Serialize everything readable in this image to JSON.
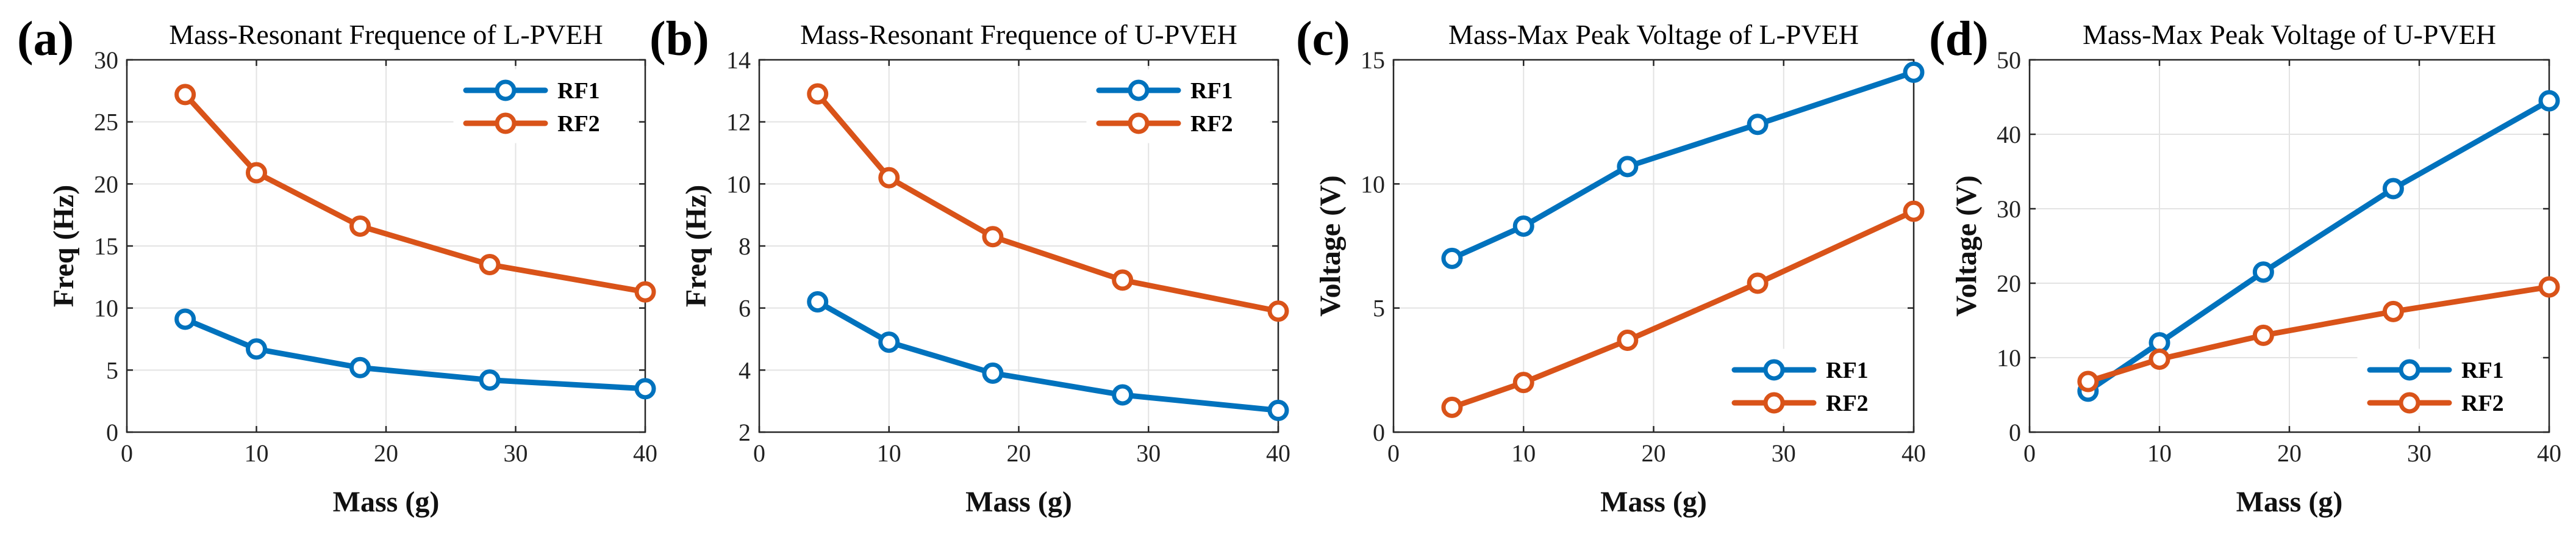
{
  "colors": {
    "rf1": "#0072BD",
    "rf2": "#D95319"
  },
  "chart_data": [
    {
      "type": "line",
      "panel_label": "(a)",
      "title": "Mass-Resonant Frequence of L-PVEH",
      "xlabel": "Mass (g)",
      "ylabel": "Freq (Hz)",
      "xlim": [
        0,
        40
      ],
      "ylim": [
        0,
        30
      ],
      "xticks": [
        0,
        10,
        20,
        30,
        40
      ],
      "yticks": [
        0,
        5,
        10,
        15,
        20,
        25,
        30
      ],
      "grid": true,
      "legend_position": "top-right",
      "x": [
        4.5,
        10,
        18,
        28,
        40
      ],
      "series": [
        {
          "name": "RF1",
          "color": "#0072BD",
          "values": [
            9.1,
            6.7,
            5.2,
            4.2,
            3.5
          ]
        },
        {
          "name": "RF2",
          "color": "#D95319",
          "values": [
            27.2,
            20.9,
            16.6,
            13.5,
            11.3
          ]
        }
      ]
    },
    {
      "type": "line",
      "panel_label": "(b)",
      "title": "Mass-Resonant Frequence of U-PVEH",
      "xlabel": "Mass (g)",
      "ylabel": "Freq (Hz)",
      "xlim": [
        0,
        40
      ],
      "ylim": [
        2,
        14
      ],
      "xticks": [
        0,
        10,
        20,
        30,
        40
      ],
      "yticks": [
        2,
        4,
        6,
        8,
        10,
        12,
        14
      ],
      "grid": true,
      "legend_position": "top-right",
      "x": [
        4.5,
        10,
        18,
        28,
        40
      ],
      "series": [
        {
          "name": "RF1",
          "color": "#0072BD",
          "values": [
            6.2,
            4.9,
            3.9,
            3.2,
            2.7
          ]
        },
        {
          "name": "RF2",
          "color": "#D95319",
          "values": [
            12.9,
            10.2,
            8.3,
            6.9,
            5.9
          ]
        }
      ]
    },
    {
      "type": "line",
      "panel_label": "(c)",
      "title": "Mass-Max Peak Voltage of L-PVEH",
      "xlabel": "Mass (g)",
      "ylabel": "Voltage (V)",
      "xlim": [
        0,
        40
      ],
      "ylim": [
        0,
        15
      ],
      "xticks": [
        0,
        10,
        20,
        30,
        40
      ],
      "yticks": [
        0,
        5,
        10,
        15
      ],
      "grid": true,
      "legend_position": "bottom-right",
      "x": [
        4.5,
        10,
        18,
        28,
        40
      ],
      "series": [
        {
          "name": "RF1",
          "color": "#0072BD",
          "values": [
            7.0,
            8.3,
            10.7,
            12.4,
            14.5
          ]
        },
        {
          "name": "RF2",
          "color": "#D95319",
          "values": [
            1.0,
            2.0,
            3.7,
            6.0,
            8.9
          ]
        }
      ]
    },
    {
      "type": "line",
      "panel_label": "(d)",
      "title": "Mass-Max Peak Voltage of U-PVEH",
      "xlabel": "Mass (g)",
      "ylabel": "Voltage (V)",
      "xlim": [
        0,
        40
      ],
      "ylim": [
        0,
        50
      ],
      "xticks": [
        0,
        10,
        20,
        30,
        40
      ],
      "yticks": [
        0,
        10,
        20,
        30,
        40,
        50
      ],
      "grid": true,
      "legend_position": "bottom-right",
      "x": [
        4.5,
        10,
        18,
        28,
        40
      ],
      "series": [
        {
          "name": "RF1",
          "color": "#0072BD",
          "values": [
            5.5,
            12.0,
            21.5,
            32.7,
            44.5
          ]
        },
        {
          "name": "RF2",
          "color": "#D95319",
          "values": [
            6.8,
            9.8,
            13.0,
            16.2,
            19.5
          ]
        }
      ]
    }
  ]
}
